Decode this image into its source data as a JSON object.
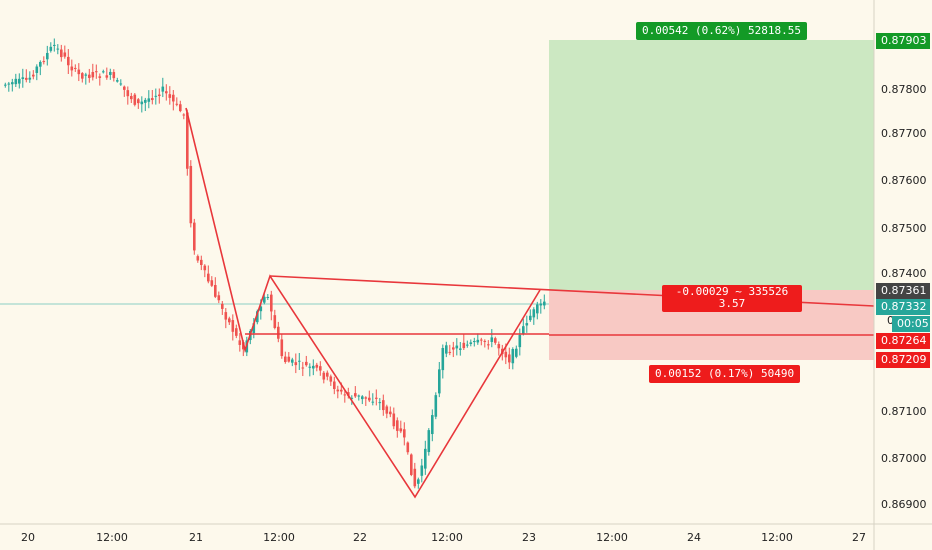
{
  "price_axis": {
    "ticks": [
      "0.87800",
      "0.87700",
      "0.87600",
      "0.87500",
      "0.87400",
      "0.87100",
      "0.87000",
      "0.86900"
    ],
    "tags": {
      "target": "0.87903",
      "current_gray": "0.87361",
      "current": "0.87332",
      "countdown": "00:05",
      "entry": "0.87264",
      "stop": "0.87209",
      "zero": "0"
    }
  },
  "time_axis": {
    "labels": [
      "20",
      "12:00",
      "21",
      "12:00",
      "22",
      "12:00",
      "23",
      "12:00",
      "24",
      "12:00",
      "27"
    ]
  },
  "position": {
    "profit_label": "0.00542 (0.62%) 52818.55",
    "center_label_1": "-0.00029 ~ 335526",
    "center_label_2": "3.57",
    "loss_label": "0.00152 (0.17%) 50490"
  },
  "colors": {
    "background": "#fdf9ec",
    "up": "#26a69a",
    "down": "#ef5350",
    "pattern": "#e8373b",
    "profit_zone": "#cce8c2",
    "loss_zone": "#f8c9c4",
    "profit_tag": "#139a26",
    "loss_tag": "#ee1c1c",
    "current_tag": "#26a69a",
    "gray_tag": "#444444"
  }
}
